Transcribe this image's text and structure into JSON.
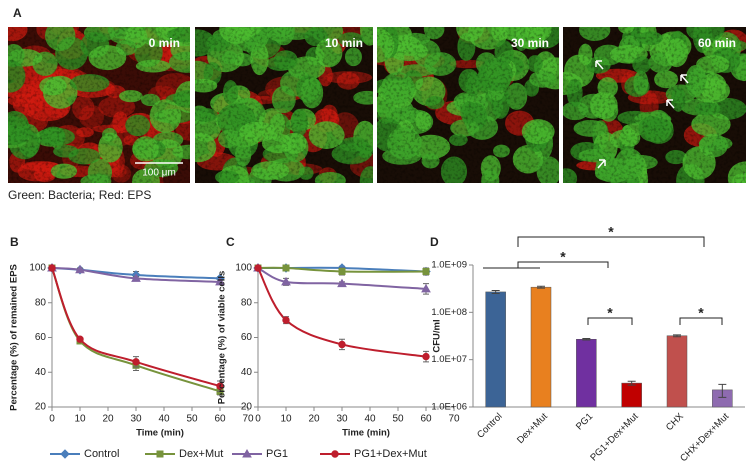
{
  "panel_a": {
    "label": "A",
    "images": [
      {
        "caption": "0 min"
      },
      {
        "caption": "10 min"
      },
      {
        "caption": "30 min"
      },
      {
        "caption": "60 min"
      }
    ],
    "scale_bar": "100 μm",
    "caption": "Green: Bacteria; Red: EPS"
  },
  "chart_data": [
    {
      "type": "line",
      "label": "B",
      "x_label": "Time (min)",
      "y_label": "Percentage (%) of remained EPS",
      "x": [
        0,
        10,
        30,
        60
      ],
      "xlim": [
        0,
        70
      ],
      "xticks": [
        0,
        10,
        20,
        30,
        40,
        50,
        60,
        70
      ],
      "ylim": [
        20,
        100
      ],
      "yticks": [
        20,
        40,
        60,
        80,
        100
      ],
      "smooth": true,
      "series": [
        {
          "name": "Control",
          "color": "#4a7ebb",
          "marker": "diamond",
          "values": [
            100,
            99,
            96,
            94
          ],
          "errors": [
            0,
            1,
            2,
            1
          ]
        },
        {
          "name": "Dex+Mut",
          "color": "#77933c",
          "marker": "square",
          "values": [
            100,
            58,
            44,
            29
          ],
          "errors": [
            0,
            1,
            3,
            2
          ]
        },
        {
          "name": "PG1",
          "color": "#8064a2",
          "marker": "triangle",
          "values": [
            100,
            99,
            94,
            92
          ],
          "errors": [
            0,
            1,
            1,
            1
          ]
        },
        {
          "name": "PG1+Dex+Mut",
          "color": "#be1e2d",
          "marker": "circle",
          "values": [
            100,
            59,
            46,
            32
          ],
          "errors": [
            0,
            1,
            3,
            3
          ]
        }
      ]
    },
    {
      "type": "line",
      "label": "C",
      "x_label": "Time (min)",
      "y_label": "Percentage (%) of viable cells",
      "x": [
        0,
        10,
        30,
        60
      ],
      "xlim": [
        0,
        70
      ],
      "xticks": [
        0,
        10,
        20,
        30,
        40,
        50,
        60,
        70
      ],
      "ylim": [
        20,
        100
      ],
      "yticks": [
        20,
        40,
        60,
        80,
        100
      ],
      "smooth": true,
      "series": [
        {
          "color": "#4a7ebb",
          "marker": "diamond",
          "values": [
            100,
            100,
            100,
            98
          ],
          "errors": [
            0,
            1,
            1,
            1
          ]
        },
        {
          "color": "#77933c",
          "marker": "square",
          "values": [
            100,
            100,
            98,
            98
          ],
          "errors": [
            0,
            1,
            2,
            2
          ]
        },
        {
          "color": "#8064a2",
          "marker": "triangle",
          "values": [
            100,
            92,
            91,
            88
          ],
          "errors": [
            0,
            2,
            1,
            3
          ]
        },
        {
          "color": "#be1e2d",
          "marker": "circle",
          "values": [
            100,
            70,
            56,
            49
          ],
          "errors": [
            0,
            2,
            3,
            3
          ]
        }
      ]
    },
    {
      "type": "bar",
      "label": "D",
      "y_label": "CFU/ml",
      "log_scale": true,
      "categories": [
        "Control",
        "Dex+Mut",
        "PG1",
        "PG1+Dex+Mut",
        "CHX",
        "CHX+Dex+Mut"
      ],
      "values": [
        270000000,
        340000000,
        27000000,
        3200000,
        32000000,
        2300000
      ],
      "errors": [
        20000000,
        15000000,
        1000000,
        300000,
        1500000,
        700000
      ],
      "colors": [
        "#3c6496",
        "#e8801f",
        "#7030a0",
        "#c00000",
        "#c0504d",
        "#8e6bb0"
      ],
      "ylim": [
        1000000,
        1000000000
      ],
      "yticks": [
        {
          "value": 1000000,
          "label": "1.0E+06"
        },
        {
          "value": 10000000,
          "label": "1.0E+07"
        },
        {
          "value": 100000000,
          "label": "1.0E+08"
        },
        {
          "value": 1000000000,
          "label": "1.0E+09"
        }
      ],
      "annotations": [
        "*",
        "*",
        "*",
        "*"
      ]
    }
  ]
}
